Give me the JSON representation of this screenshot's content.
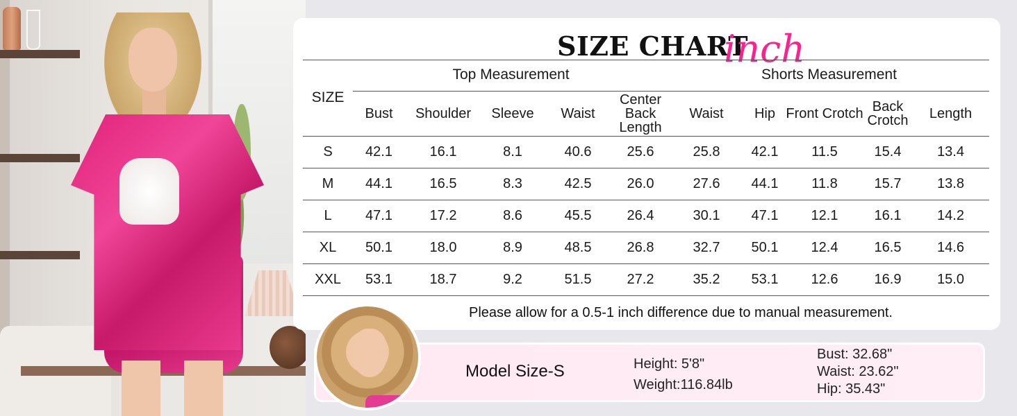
{
  "chart": {
    "title": "SIZE CHART",
    "unit": "inch",
    "size_header": "SIZE",
    "groups": {
      "top": "Top Measurement",
      "shorts": "Shorts Measurement"
    },
    "columns": [
      "Bust",
      "Shoulder",
      "Sleeve",
      "Waist",
      "Center Back Length",
      "Waist",
      "Hip",
      "Front Crotch",
      "Back Crotch",
      "Length"
    ],
    "rows": [
      {
        "size": "S",
        "values": [
          "42.1",
          "16.1",
          "8.1",
          "40.6",
          "25.6",
          "25.8",
          "42.1",
          "11.5",
          "15.4",
          "13.4"
        ]
      },
      {
        "size": "M",
        "values": [
          "44.1",
          "16.5",
          "8.3",
          "42.5",
          "26.0",
          "27.6",
          "44.1",
          "11.8",
          "15.7",
          "13.8"
        ]
      },
      {
        "size": "L",
        "values": [
          "47.1",
          "17.2",
          "8.6",
          "45.5",
          "26.4",
          "30.1",
          "47.1",
          "12.1",
          "16.1",
          "14.2"
        ]
      },
      {
        "size": "XL",
        "values": [
          "50.1",
          "18.0",
          "8.9",
          "48.5",
          "26.8",
          "32.7",
          "50.1",
          "12.4",
          "16.5",
          "14.6"
        ]
      },
      {
        "size": "XXL",
        "values": [
          "53.1",
          "18.7",
          "9.2",
          "51.5",
          "27.2",
          "35.2",
          "53.1",
          "12.6",
          "16.9",
          "15.0"
        ]
      }
    ],
    "note": "Please allow for a 0.5-1 inch difference due to manual measurement."
  },
  "model": {
    "size": "Model Size-S",
    "height": "Height: 5'8\"",
    "weight": "Weight:116.84lb",
    "bust": "Bust: 32.68\"",
    "waist": "Waist: 23.62\"",
    "hip": "Hip: 35.43\""
  },
  "colors": {
    "accent": "#ff1f8e",
    "shirt": "#e0237a",
    "model_bar": "#ffe9f3"
  }
}
